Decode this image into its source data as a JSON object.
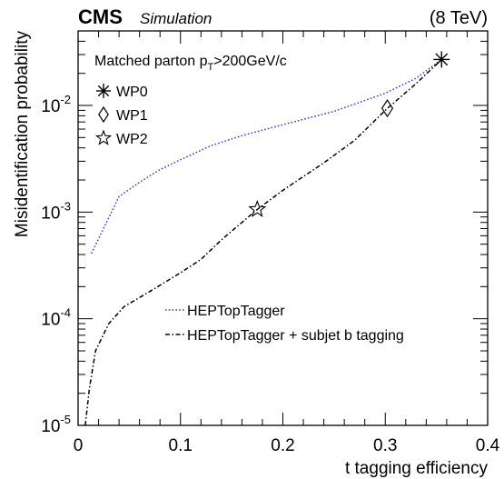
{
  "header": {
    "experiment": "CMS",
    "subtitle": "Simulation",
    "energy": "(8 TeV)"
  },
  "annotation": {
    "prefix": "Matched parton p",
    "subscript": "T",
    "suffix": ">200GeV/c"
  },
  "markers": [
    {
      "label": "WP0",
      "symbol": "asterisk"
    },
    {
      "label": "WP1",
      "symbol": "diamond"
    },
    {
      "label": "WP2",
      "symbol": "star"
    }
  ],
  "chart_data": {
    "type": "line",
    "xlabel": "t tagging efficiency",
    "ylabel": "Misidentification probability",
    "xlim": [
      0,
      0.4
    ],
    "ylim": [
      1e-05,
      0.05
    ],
    "yscale": "log",
    "xticks": [
      "0",
      "0.1",
      "0.2",
      "0.3",
      "0.4"
    ],
    "yticks": [
      {
        "base": "10",
        "exp": "-5",
        "value": 1e-05
      },
      {
        "base": "10",
        "exp": "-4",
        "value": 0.0001
      },
      {
        "base": "10",
        "exp": "-3",
        "value": 0.001
      },
      {
        "base": "10",
        "exp": "-2",
        "value": 0.01
      }
    ],
    "legend_position": "bottom-right",
    "series": [
      {
        "name": "HEPTopTagger",
        "color": "#3b3bd6",
        "style": "dotted",
        "points": [
          [
            0.013,
            0.00041
          ],
          [
            0.04,
            0.0014
          ],
          [
            0.06,
            0.0019
          ],
          [
            0.08,
            0.0025
          ],
          [
            0.1,
            0.0031
          ],
          [
            0.13,
            0.0042
          ],
          [
            0.16,
            0.0052
          ],
          [
            0.2,
            0.0066
          ],
          [
            0.25,
            0.0088
          ],
          [
            0.3,
            0.013
          ],
          [
            0.33,
            0.018
          ],
          [
            0.355,
            0.027
          ]
        ]
      },
      {
        "name": "HEPTopTagger + subjet b tagging",
        "color": "#000000",
        "style": "dashdot",
        "points": [
          [
            0.007,
            1e-05
          ],
          [
            0.011,
            2.2e-05
          ],
          [
            0.017,
            5e-05
          ],
          [
            0.03,
            9e-05
          ],
          [
            0.045,
            0.00013
          ],
          [
            0.07,
            0.00018
          ],
          [
            0.1,
            0.00027
          ],
          [
            0.12,
            0.00036
          ],
          [
            0.14,
            0.00055
          ],
          [
            0.175,
            0.00106
          ],
          [
            0.2,
            0.0016
          ],
          [
            0.24,
            0.0029
          ],
          [
            0.27,
            0.0047
          ],
          [
            0.302,
            0.0094
          ],
          [
            0.33,
            0.016
          ],
          [
            0.355,
            0.027
          ]
        ]
      }
    ],
    "working_points": [
      {
        "label": "WP0",
        "x": 0.355,
        "y": 0.027
      },
      {
        "label": "WP1",
        "x": 0.302,
        "y": 0.0094
      },
      {
        "label": "WP2",
        "x": 0.175,
        "y": 0.00106
      }
    ]
  }
}
